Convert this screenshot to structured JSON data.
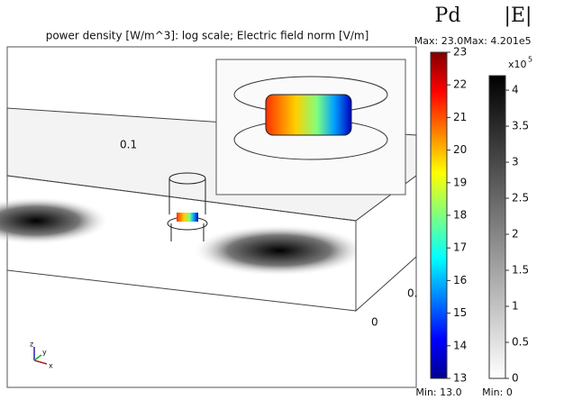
{
  "title": "power density [W/m^3]: log scale; Electric field norm [V/m]",
  "scene_labels": [
    "0.1",
    "0.",
    "0"
  ],
  "triad": [
    "z",
    "y",
    "x"
  ],
  "colorbars": [
    {
      "name": "Pd",
      "max_label": "Max: 23.0",
      "min_label": "Min: 13.0",
      "lim": [
        13,
        23
      ],
      "ticks": [
        13,
        14,
        15,
        16,
        17,
        18,
        19,
        20,
        21,
        22,
        23
      ]
    },
    {
      "name": "|E|",
      "max_label": "Max: 4.201e5",
      "min_label": "Min: 0",
      "multiplier": "x10",
      "exponent": "5",
      "lim": [
        0,
        4.201
      ],
      "ticks": [
        0,
        0.5,
        1,
        1.5,
        2,
        2.5,
        3,
        3.5,
        4
      ]
    }
  ]
}
